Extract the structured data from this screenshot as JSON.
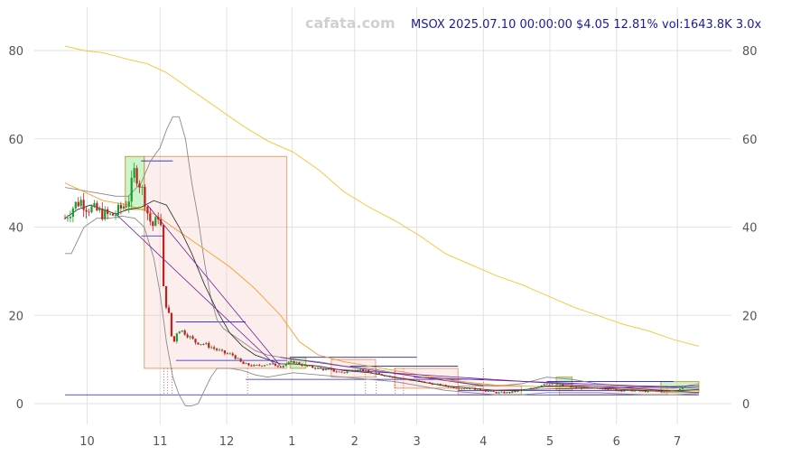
{
  "watermark": "cafata.com",
  "header_text": "MSOX 2025.07.10 00:00:00 $4.05 12.81% vol:1643.8K 3.0x",
  "chart_data": {
    "type": "candlestick",
    "ticker": "MSOX",
    "ylim": [
      -3,
      88
    ],
    "yticks": [
      0,
      20,
      40,
      60,
      80
    ],
    "ytick_labels": [
      "0",
      "20",
      "40",
      "60",
      "80"
    ],
    "xlim": [
      0,
      100
    ],
    "xticks": [
      {
        "label": "10",
        "x": 3.5
      },
      {
        "label": "11",
        "x": 15.0
      },
      {
        "label": "12",
        "x": 25.5
      },
      {
        "label": "1",
        "x": 35.8
      },
      {
        "label": "2",
        "x": 45.7
      },
      {
        "label": "3",
        "x": 55.5
      },
      {
        "label": "4",
        "x": 66.0
      },
      {
        "label": "5",
        "x": 76.5
      },
      {
        "label": "6",
        "x": 87.0
      },
      {
        "label": "7",
        "x": 96.6
      }
    ],
    "grid": true,
    "price_path": [
      [
        0.0,
        42
      ],
      [
        1.5,
        45
      ],
      [
        2.5,
        46
      ],
      [
        3.5,
        44.5
      ],
      [
        4.5,
        44
      ],
      [
        6.0,
        43
      ],
      [
        7.0,
        42.5
      ],
      [
        8.0,
        43
      ],
      [
        9.0,
        44.5
      ],
      [
        10.0,
        46
      ],
      [
        11.0,
        53
      ],
      [
        11.5,
        51
      ],
      [
        12.5,
        47
      ],
      [
        13.2,
        42
      ],
      [
        14.0,
        40
      ],
      [
        15.0,
        44
      ],
      [
        15.6,
        24
      ],
      [
        16.3,
        21
      ],
      [
        17.0,
        13
      ],
      [
        17.8,
        17
      ],
      [
        19.0,
        16
      ],
      [
        20.5,
        14
      ],
      [
        22.0,
        13.5
      ],
      [
        23.5,
        12.5
      ],
      [
        25.0,
        11.5
      ],
      [
        26.5,
        11
      ],
      [
        28.0,
        9
      ],
      [
        30.0,
        8.5
      ],
      [
        32.0,
        9
      ],
      [
        34.0,
        8.5
      ],
      [
        36.0,
        9.5
      ],
      [
        38.0,
        8.5
      ],
      [
        40.0,
        8
      ],
      [
        42.0,
        7.5
      ],
      [
        44.0,
        7
      ],
      [
        46.0,
        8
      ],
      [
        48.0,
        7
      ],
      [
        50.0,
        6.5
      ],
      [
        52.0,
        6
      ],
      [
        54.0,
        5.5
      ],
      [
        56.0,
        5
      ],
      [
        58.0,
        4.5
      ],
      [
        60.0,
        4
      ],
      [
        62.0,
        3.5
      ],
      [
        64.0,
        3.5
      ],
      [
        66.0,
        3
      ],
      [
        68.0,
        2.5
      ],
      [
        70.0,
        2.5
      ],
      [
        72.0,
        3
      ],
      [
        74.0,
        3.5
      ],
      [
        75.5,
        4.5
      ],
      [
        77.0,
        4.5
      ],
      [
        79.0,
        4
      ],
      [
        81.0,
        3.5
      ],
      [
        83.0,
        3.5
      ],
      [
        85.0,
        3.5
      ],
      [
        87.0,
        3
      ],
      [
        89.0,
        3
      ],
      [
        91.0,
        2.8
      ],
      [
        93.0,
        2.8
      ],
      [
        95.0,
        2.8
      ],
      [
        96.5,
        3
      ],
      [
        98.0,
        4
      ]
    ],
    "ma_long": [
      [
        0,
        81
      ],
      [
        3,
        80
      ],
      [
        6,
        79.5
      ],
      [
        10,
        78
      ],
      [
        13,
        77
      ],
      [
        16,
        75
      ],
      [
        20,
        71
      ],
      [
        24,
        67
      ],
      [
        28,
        63
      ],
      [
        32,
        59.5
      ],
      [
        36,
        57
      ],
      [
        40,
        53
      ],
      [
        44,
        48
      ],
      [
        48,
        44.5
      ],
      [
        52,
        41.5
      ],
      [
        56,
        38
      ],
      [
        60,
        34
      ],
      [
        64,
        31.5
      ],
      [
        68,
        29
      ],
      [
        72,
        27
      ],
      [
        76,
        24.5
      ],
      [
        80,
        22
      ],
      [
        84,
        20
      ],
      [
        88,
        18
      ],
      [
        92,
        16.5
      ],
      [
        96,
        14.5
      ],
      [
        100,
        13
      ]
    ],
    "ma_mid": [
      [
        0,
        50
      ],
      [
        3,
        48
      ],
      [
        6,
        46
      ],
      [
        10,
        45
      ],
      [
        14,
        43
      ],
      [
        18,
        39
      ],
      [
        22,
        35
      ],
      [
        26,
        31
      ],
      [
        30,
        26
      ],
      [
        34,
        20
      ],
      [
        37,
        14
      ],
      [
        40,
        11
      ],
      [
        44,
        9.5
      ],
      [
        48,
        8.5
      ],
      [
        52,
        7.5
      ],
      [
        56,
        6.5
      ],
      [
        60,
        5.5
      ],
      [
        64,
        4.8
      ],
      [
        68,
        4.2
      ],
      [
        72,
        4
      ],
      [
        76,
        3.8
      ],
      [
        80,
        3.6
      ],
      [
        84,
        3.5
      ],
      [
        88,
        3.3
      ],
      [
        92,
        3.1
      ],
      [
        96,
        3
      ],
      [
        100,
        3
      ]
    ],
    "ma_short": [
      [
        0,
        42
      ],
      [
        2,
        44
      ],
      [
        4,
        45
      ],
      [
        6,
        44
      ],
      [
        8,
        43
      ],
      [
        10,
        44
      ],
      [
        12,
        44.5
      ],
      [
        14,
        46
      ],
      [
        16,
        45
      ],
      [
        18,
        40
      ],
      [
        20,
        34
      ],
      [
        22,
        27
      ],
      [
        24,
        21
      ],
      [
        26,
        16
      ],
      [
        28,
        13
      ],
      [
        30,
        11
      ],
      [
        32,
        10
      ],
      [
        34,
        9
      ],
      [
        36,
        9
      ],
      [
        40,
        8.5
      ],
      [
        44,
        7.5
      ],
      [
        48,
        7
      ],
      [
        52,
        6
      ],
      [
        56,
        5
      ],
      [
        60,
        4
      ],
      [
        64,
        3.5
      ],
      [
        68,
        3
      ],
      [
        72,
        3
      ],
      [
        76,
        4
      ],
      [
        80,
        4
      ],
      [
        84,
        3.5
      ],
      [
        88,
        3.2
      ],
      [
        92,
        2.9
      ],
      [
        96,
        2.9
      ],
      [
        100,
        3.2
      ]
    ],
    "band_upper": [
      [
        0,
        49
      ],
      [
        2,
        48.5
      ],
      [
        4,
        48
      ],
      [
        6,
        47.5
      ],
      [
        8,
        47
      ],
      [
        10,
        47
      ],
      [
        12,
        50
      ],
      [
        13.5,
        55
      ],
      [
        15,
        58
      ],
      [
        16,
        62
      ],
      [
        17,
        65
      ],
      [
        18,
        65
      ],
      [
        19,
        60
      ],
      [
        20,
        50
      ],
      [
        21,
        42
      ],
      [
        22,
        32
      ],
      [
        23,
        24
      ],
      [
        24,
        19
      ],
      [
        25,
        17
      ],
      [
        26,
        16
      ],
      [
        28,
        14
      ],
      [
        30,
        12
      ],
      [
        32,
        11
      ],
      [
        34,
        10.5
      ],
      [
        36,
        10
      ],
      [
        40,
        9.5
      ],
      [
        44,
        8.5
      ],
      [
        48,
        8
      ],
      [
        52,
        7
      ],
      [
        56,
        6
      ],
      [
        60,
        5.5
      ],
      [
        64,
        4.5
      ],
      [
        68,
        4
      ],
      [
        72,
        4.5
      ],
      [
        76,
        6
      ],
      [
        80,
        5.5
      ],
      [
        84,
        4.5
      ],
      [
        88,
        4
      ],
      [
        92,
        3.5
      ],
      [
        96,
        3.5
      ],
      [
        100,
        4.5
      ]
    ],
    "band_lower": [
      [
        0,
        34
      ],
      [
        1,
        34
      ],
      [
        2,
        37
      ],
      [
        3,
        40
      ],
      [
        5,
        42
      ],
      [
        7,
        42
      ],
      [
        9,
        42.5
      ],
      [
        11,
        42
      ],
      [
        12.5,
        40
      ],
      [
        14,
        33
      ],
      [
        15,
        25
      ],
      [
        16,
        14
      ],
      [
        17,
        6
      ],
      [
        18,
        2
      ],
      [
        19,
        -0.5
      ],
      [
        20,
        -0.5
      ],
      [
        21,
        0
      ],
      [
        22,
        3
      ],
      [
        23,
        6
      ],
      [
        24,
        8
      ],
      [
        26,
        8
      ],
      [
        28,
        7.5
      ],
      [
        30,
        6.5
      ],
      [
        32,
        6
      ],
      [
        34,
        6.5
      ],
      [
        36,
        7
      ],
      [
        40,
        6.5
      ],
      [
        44,
        6
      ],
      [
        48,
        5.5
      ],
      [
        52,
        5
      ],
      [
        56,
        4
      ],
      [
        60,
        3
      ],
      [
        64,
        2.5
      ],
      [
        68,
        2
      ],
      [
        72,
        2
      ],
      [
        76,
        2.5
      ],
      [
        80,
        2.5
      ],
      [
        84,
        2.5
      ],
      [
        88,
        2.2
      ],
      [
        92,
        2
      ],
      [
        96,
        2
      ],
      [
        100,
        2.3
      ]
    ],
    "boxes_red": [
      {
        "x0": 12.5,
        "x1": 35.0,
        "y0": 8,
        "y1": 56
      },
      {
        "x0": 42.0,
        "x1": 49.0,
        "y0": 6,
        "y1": 10
      },
      {
        "x0": 52.0,
        "x1": 62.0,
        "y0": 3.5,
        "y1": 8
      },
      {
        "x0": 62.0,
        "x1": 72.0,
        "y0": 2,
        "y1": 4
      },
      {
        "x0": 78.0,
        "x1": 95.0,
        "y0": 2,
        "y1": 4
      }
    ],
    "boxes_green": [
      {
        "x0": 9.5,
        "x1": 12.5,
        "y0": 44,
        "y1": 56
      },
      {
        "x0": 35.5,
        "x1": 38.0,
        "y0": 8,
        "y1": 10.5
      },
      {
        "x0": 77.5,
        "x1": 80.0,
        "y0": 3,
        "y1": 6
      },
      {
        "x0": 94.0,
        "x1": 100.0,
        "y0": 2.5,
        "y1": 5
      }
    ],
    "hlines_blue": [
      {
        "x0": 0,
        "x1": 100,
        "y": 2
      },
      {
        "x0": 12.0,
        "x1": 17.0,
        "y": 55
      },
      {
        "x0": 12.0,
        "x1": 15.5,
        "y": 38
      },
      {
        "x0": 17.5,
        "x1": 28.5,
        "y": 18.5
      },
      {
        "x0": 17.5,
        "x1": 35.0,
        "y": 9.8
      },
      {
        "x0": 35.5,
        "x1": 55.5,
        "y": 10.5
      },
      {
        "x0": 28.5,
        "x1": 66.0,
        "y": 5.5
      },
      {
        "x0": 45.0,
        "x1": 62.0,
        "y": 8.5
      },
      {
        "x0": 62.0,
        "x1": 92.0,
        "y": 3.0
      },
      {
        "x0": 76.0,
        "x1": 96.0,
        "y": 5.0
      }
    ],
    "trendlines_purple": [
      {
        "x0": 8.0,
        "y0": 43,
        "x1": 33.0,
        "y1": 9
      },
      {
        "x0": 13.0,
        "y0": 45,
        "x1": 34.0,
        "y1": 8.5
      },
      {
        "x0": 34.0,
        "y0": 10.5,
        "x1": 66.0,
        "y1": 4
      },
      {
        "x0": 40.0,
        "y0": 8,
        "x1": 100.0,
        "y1": 2.5
      },
      {
        "x0": 55.0,
        "y0": 6,
        "x1": 100.0,
        "y1": 3.5
      },
      {
        "x0": 66.0,
        "y0": 3,
        "x1": 100.0,
        "y1": 4
      }
    ],
    "vlines_red_dotted": [
      15.6,
      16.2,
      16.9,
      28.8,
      47.4,
      49.1,
      52.1,
      53.4,
      66.0
    ]
  }
}
